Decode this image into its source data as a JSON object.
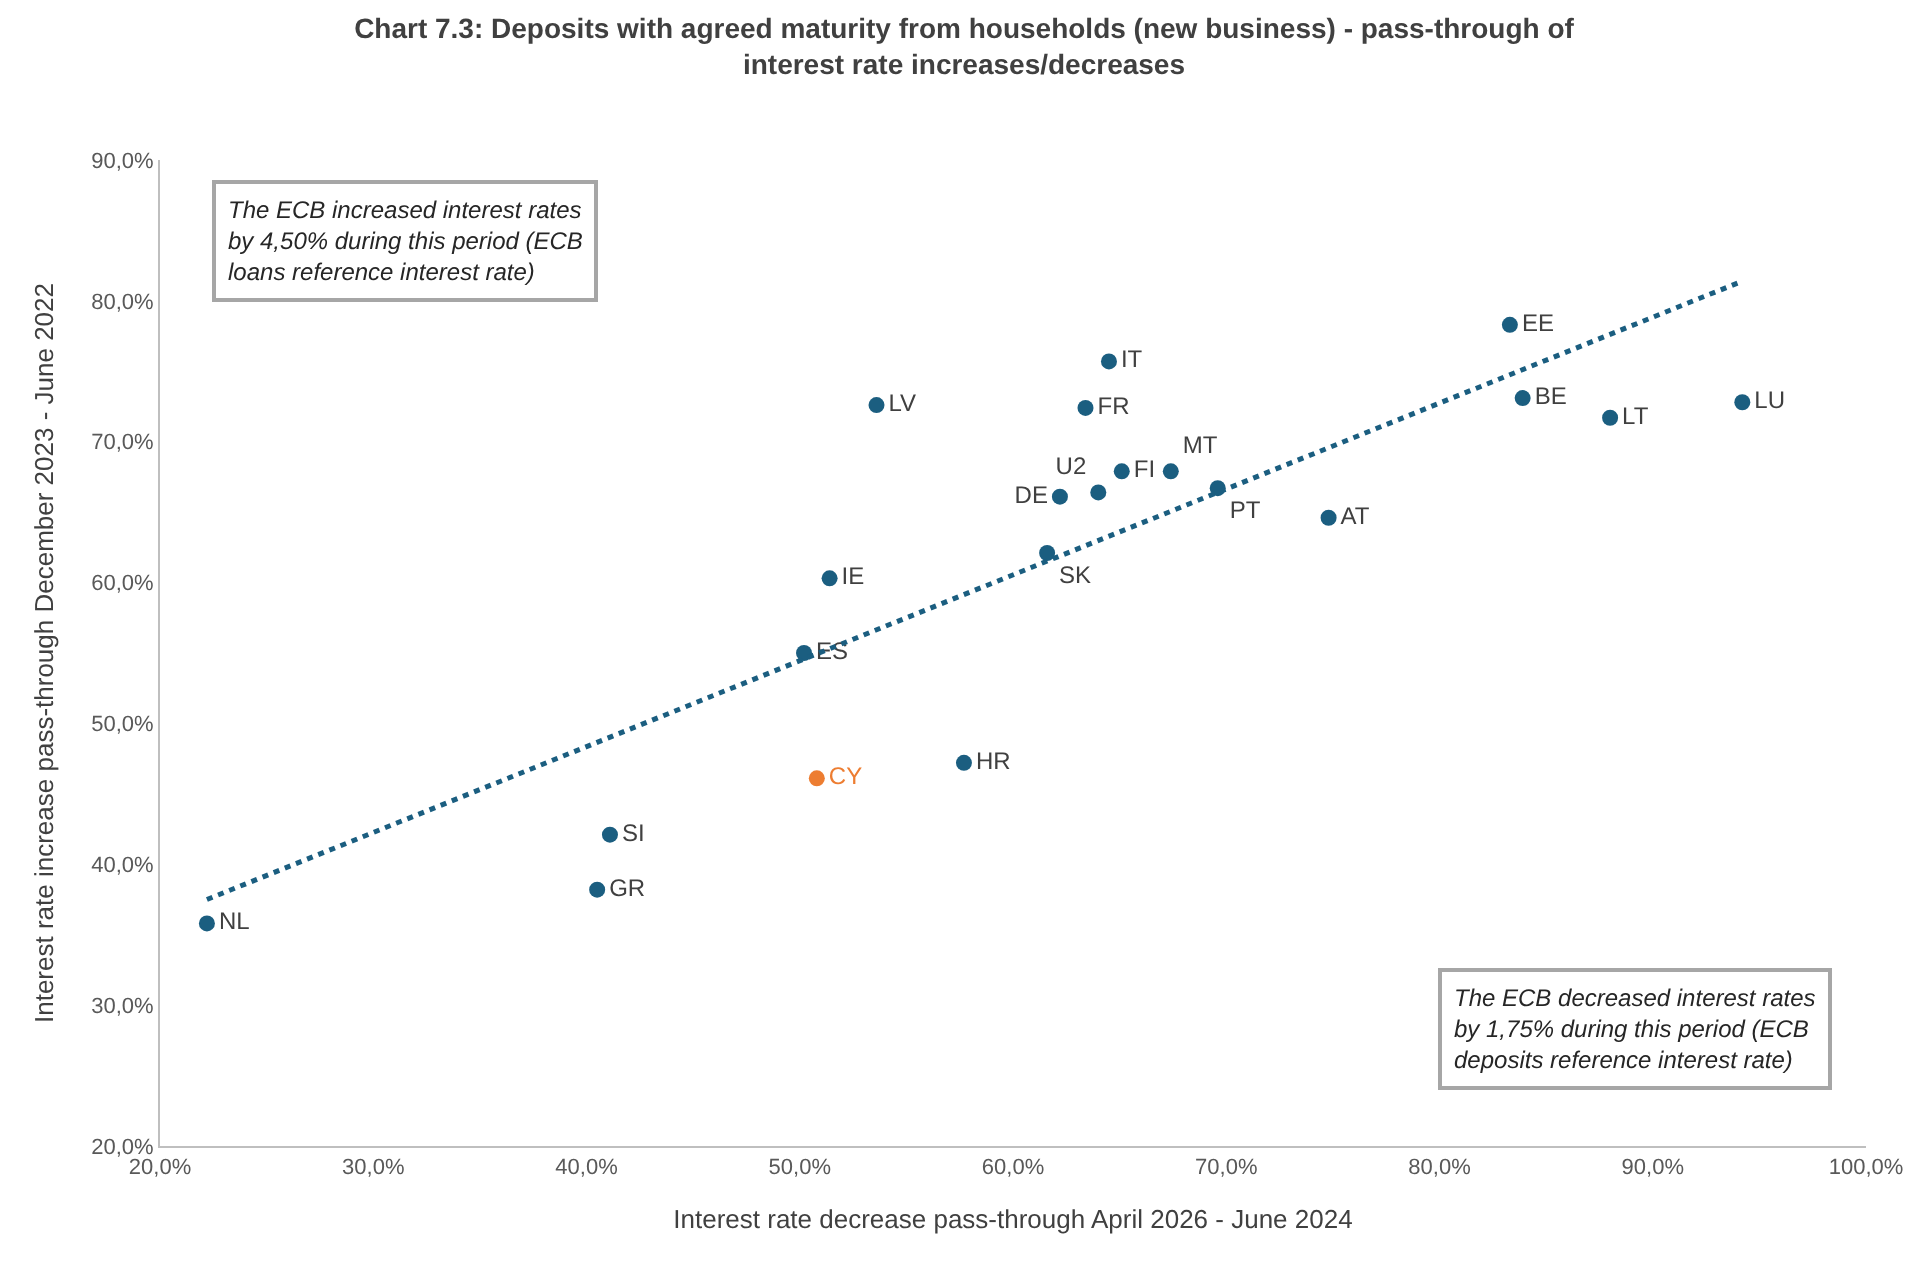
{
  "chart_data": {
    "type": "scatter",
    "title": "Chart 7.3: Deposits with agreed maturity from households (new business) - pass-through of interest rate increases/decreases",
    "xlabel": "Interest rate decrease pass-through April 2026 - June 2024",
    "ylabel": "Interest rate increase pass-through December 2023 - June 2022",
    "xlim": [
      20,
      100
    ],
    "ylim": [
      20,
      90
    ],
    "xticks": [
      {
        "value": 20,
        "label": "20,0%"
      },
      {
        "value": 30,
        "label": "30,0%"
      },
      {
        "value": 40,
        "label": "40,0%"
      },
      {
        "value": 50,
        "label": "50,0%"
      },
      {
        "value": 60,
        "label": "60,0%"
      },
      {
        "value": 70,
        "label": "70,0%"
      },
      {
        "value": 80,
        "label": "80,0%"
      },
      {
        "value": 90,
        "label": "90,0%"
      },
      {
        "value": 100,
        "label": "100,0%"
      }
    ],
    "yticks": [
      {
        "value": 20,
        "label": "20,0%"
      },
      {
        "value": 30,
        "label": "30,0%"
      },
      {
        "value": 40,
        "label": "40,0%"
      },
      {
        "value": 50,
        "label": "50,0%"
      },
      {
        "value": 60,
        "label": "60,0%"
      },
      {
        "value": 70,
        "label": "70,0%"
      },
      {
        "value": 80,
        "label": "80,0%"
      },
      {
        "value": 90,
        "label": "90,0%"
      }
    ],
    "legend": false,
    "marker": "circle",
    "series": [
      {
        "name": "NL",
        "color": "#1b5e80",
        "x": [
          22.2
        ],
        "values": [
          35.8
        ]
      },
      {
        "name": "GR",
        "color": "#1b5e80",
        "x": [
          40.5
        ],
        "values": [
          38.2
        ]
      },
      {
        "name": "SI",
        "color": "#1b5e80",
        "x": [
          41.1
        ],
        "values": [
          42.1
        ]
      },
      {
        "name": "CY",
        "color": "#ed7d31",
        "x": [
          50.8
        ],
        "values": [
          46.1
        ]
      },
      {
        "name": "HR",
        "color": "#1b5e80",
        "x": [
          57.7
        ],
        "values": [
          47.2
        ]
      },
      {
        "name": "ES",
        "color": "#1b5e80",
        "x": [
          50.2
        ],
        "values": [
          55.0
        ]
      },
      {
        "name": "IE",
        "color": "#1b5e80",
        "x": [
          51.4
        ],
        "values": [
          60.3
        ]
      },
      {
        "name": "LV",
        "color": "#1b5e80",
        "x": [
          53.6
        ],
        "values": [
          72.6
        ]
      },
      {
        "name": "IT",
        "color": "#1b5e80",
        "x": [
          64.5
        ],
        "values": [
          75.7
        ]
      },
      {
        "name": "FR",
        "color": "#1b5e80",
        "x": [
          63.4
        ],
        "values": [
          72.4
        ]
      },
      {
        "name": "U2",
        "color": "#1b5e80",
        "x": [
          64.0
        ],
        "values": [
          66.4
        ]
      },
      {
        "name": "DE",
        "color": "#1b5e80",
        "x": [
          62.2
        ],
        "values": [
          66.1
        ]
      },
      {
        "name": "FI",
        "color": "#1b5e80",
        "x": [
          65.1
        ],
        "values": [
          67.9
        ]
      },
      {
        "name": "MT",
        "color": "#1b5e80",
        "x": [
          67.4
        ],
        "values": [
          67.9
        ]
      },
      {
        "name": "PT",
        "color": "#1b5e80",
        "x": [
          69.6
        ],
        "values": [
          66.7
        ]
      },
      {
        "name": "SK",
        "color": "#1b5e80",
        "x": [
          61.6
        ],
        "values": [
          62.1
        ]
      },
      {
        "name": "AT",
        "color": "#1b5e80",
        "x": [
          74.8
        ],
        "values": [
          64.6
        ]
      },
      {
        "name": "EE",
        "color": "#1b5e80",
        "x": [
          83.3
        ],
        "values": [
          78.3
        ]
      },
      {
        "name": "BE",
        "color": "#1b5e80",
        "x": [
          83.9
        ],
        "values": [
          73.1
        ]
      },
      {
        "name": "LT",
        "color": "#1b5e80",
        "x": [
          88.0
        ],
        "values": [
          71.7
        ]
      },
      {
        "name": "LU",
        "color": "#1b5e80",
        "x": [
          94.2
        ],
        "values": [
          72.8
        ]
      },
      {
        "type": "line",
        "line_style": "dotted",
        "marker": "none",
        "color": "#1b5e80",
        "x": [
          22.2,
          94.2
        ],
        "values": [
          37.5,
          81.4
        ]
      }
    ],
    "annotations": [
      "The ECB increased interest rates by 4,50% during this period (ECB loans reference interest rate)",
      "The ECB decreased interest rates by 1,75% during this period (ECB deposits reference interest rate)"
    ]
  }
}
